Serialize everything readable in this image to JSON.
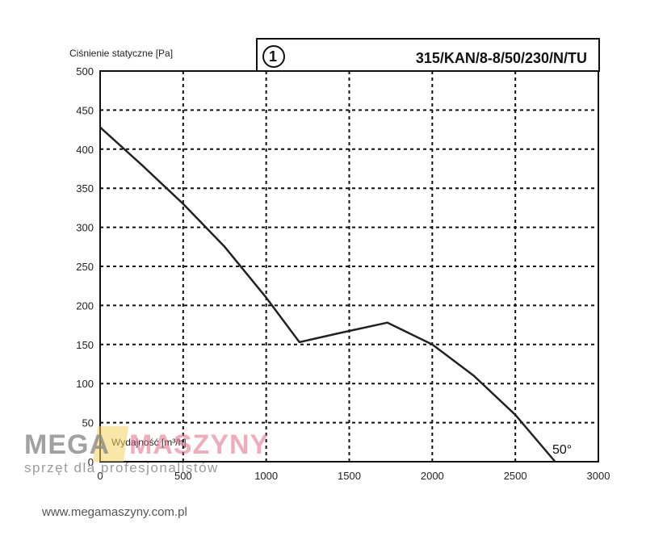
{
  "chart_data": {
    "type": "line",
    "title": "315/KAN/8-8/50/230/N/TU",
    "title_marker": "1",
    "ylabel": "Ciśnienie statyczne [Pa]",
    "xlabel": "Wydajność [m³/h]",
    "xlim": [
      0,
      3000
    ],
    "ylim": [
      0,
      500
    ],
    "x_ticks": [
      0,
      500,
      1000,
      1500,
      2000,
      2500,
      3000
    ],
    "y_ticks": [
      0,
      50,
      100,
      150,
      200,
      250,
      300,
      350,
      400,
      450,
      500
    ],
    "grid": true,
    "series": [
      {
        "name": "50°",
        "color": "#222222",
        "points": [
          [
            0,
            428
          ],
          [
            250,
            380
          ],
          [
            500,
            330
          ],
          [
            750,
            275
          ],
          [
            1000,
            210
          ],
          [
            1200,
            153
          ],
          [
            1450,
            165
          ],
          [
            1730,
            178
          ],
          [
            2000,
            150
          ],
          [
            2250,
            110
          ],
          [
            2500,
            60
          ],
          [
            2740,
            0
          ]
        ]
      }
    ]
  },
  "watermark": {
    "brand_left": "MEGA",
    "brand_right": "MASZYNY",
    "slogan": "sprzęt dla profesjonalistów",
    "url": "www.megamaszyny.com.pl"
  }
}
